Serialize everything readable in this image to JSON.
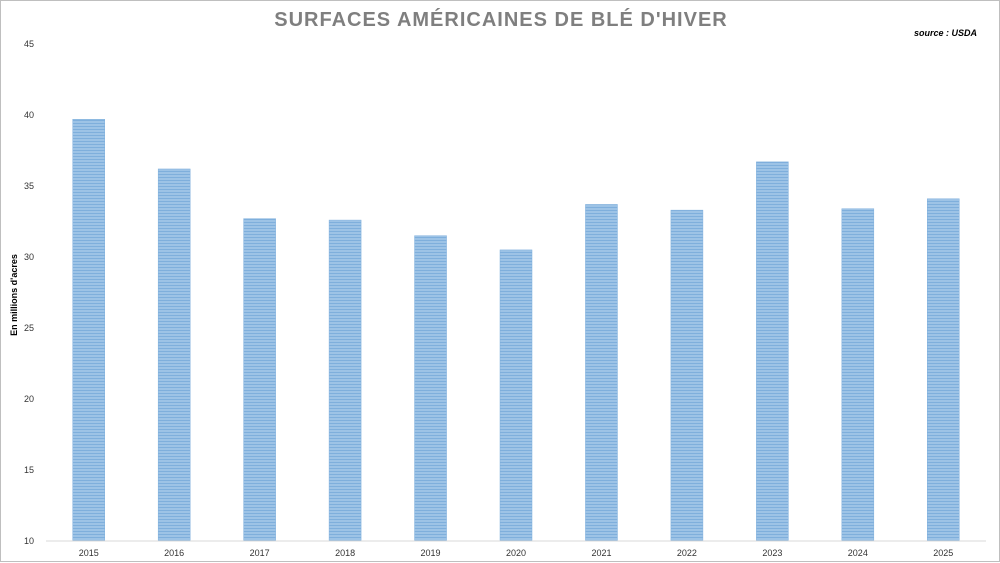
{
  "chart_data": {
    "type": "bar",
    "title": "SURFACES AMÉRICAINES DE BLÉ D'HIVER",
    "source": "source : USDA",
    "xlabel": "",
    "ylabel": "En millions d'acres",
    "categories": [
      "2015",
      "2016",
      "2017",
      "2018",
      "2019",
      "2020",
      "2021",
      "2022",
      "2023",
      "2024",
      "2025"
    ],
    "values": [
      39.7,
      36.2,
      32.7,
      32.6,
      31.5,
      30.5,
      33.7,
      33.3,
      36.7,
      33.4,
      34.1
    ],
    "ylim": [
      10,
      45
    ],
    "yticks": [
      "10",
      "15",
      "20",
      "25",
      "30",
      "35",
      "40",
      "45"
    ],
    "grid": false,
    "bar_color": "#9dc3e6",
    "bar_stripe_color": "#7fafdc"
  }
}
